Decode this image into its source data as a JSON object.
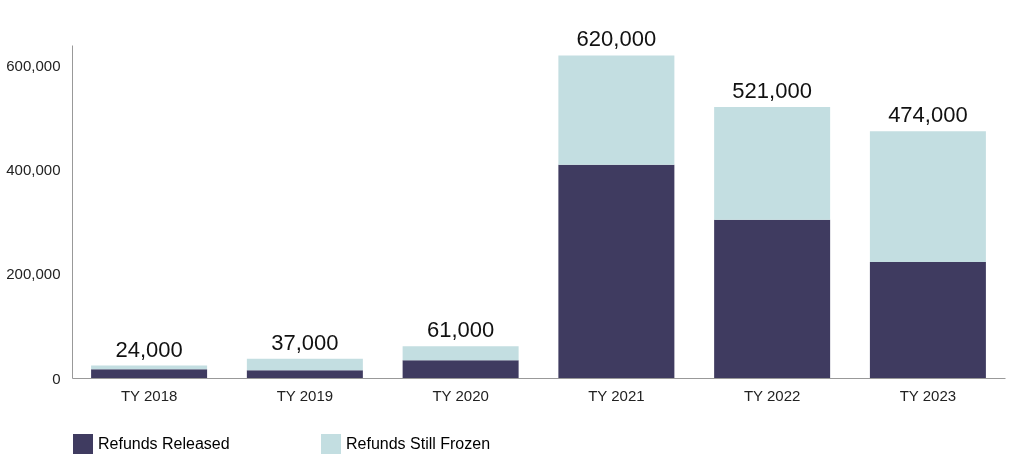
{
  "chart_data": {
    "type": "bar",
    "stacked": true,
    "categories": [
      "TY 2018",
      "TY 2019",
      "TY 2020",
      "TY 2021",
      "TY 2022",
      "TY 2023"
    ],
    "series": [
      {
        "name": "Refunds Released",
        "color": "#3f3b60",
        "values": [
          17000,
          15000,
          34000,
          410000,
          304000,
          223000
        ]
      },
      {
        "name": "Refunds Still Frozen",
        "color": "#c3dee1",
        "values": [
          7000,
          22000,
          27000,
          210000,
          217000,
          251000
        ]
      }
    ],
    "totals": [
      "24,000",
      "37,000",
      "61,000",
      "620,000",
      "521,000",
      "474,000"
    ],
    "ylim": [
      0,
      640000
    ],
    "yticks": [
      0,
      {
        "value": 200000,
        "label": "200,000"
      },
      {
        "value": 400000,
        "label": "400,000"
      },
      {
        "value": 600000,
        "label": "600,000"
      }
    ],
    "grid": false,
    "legend": "bottom"
  }
}
